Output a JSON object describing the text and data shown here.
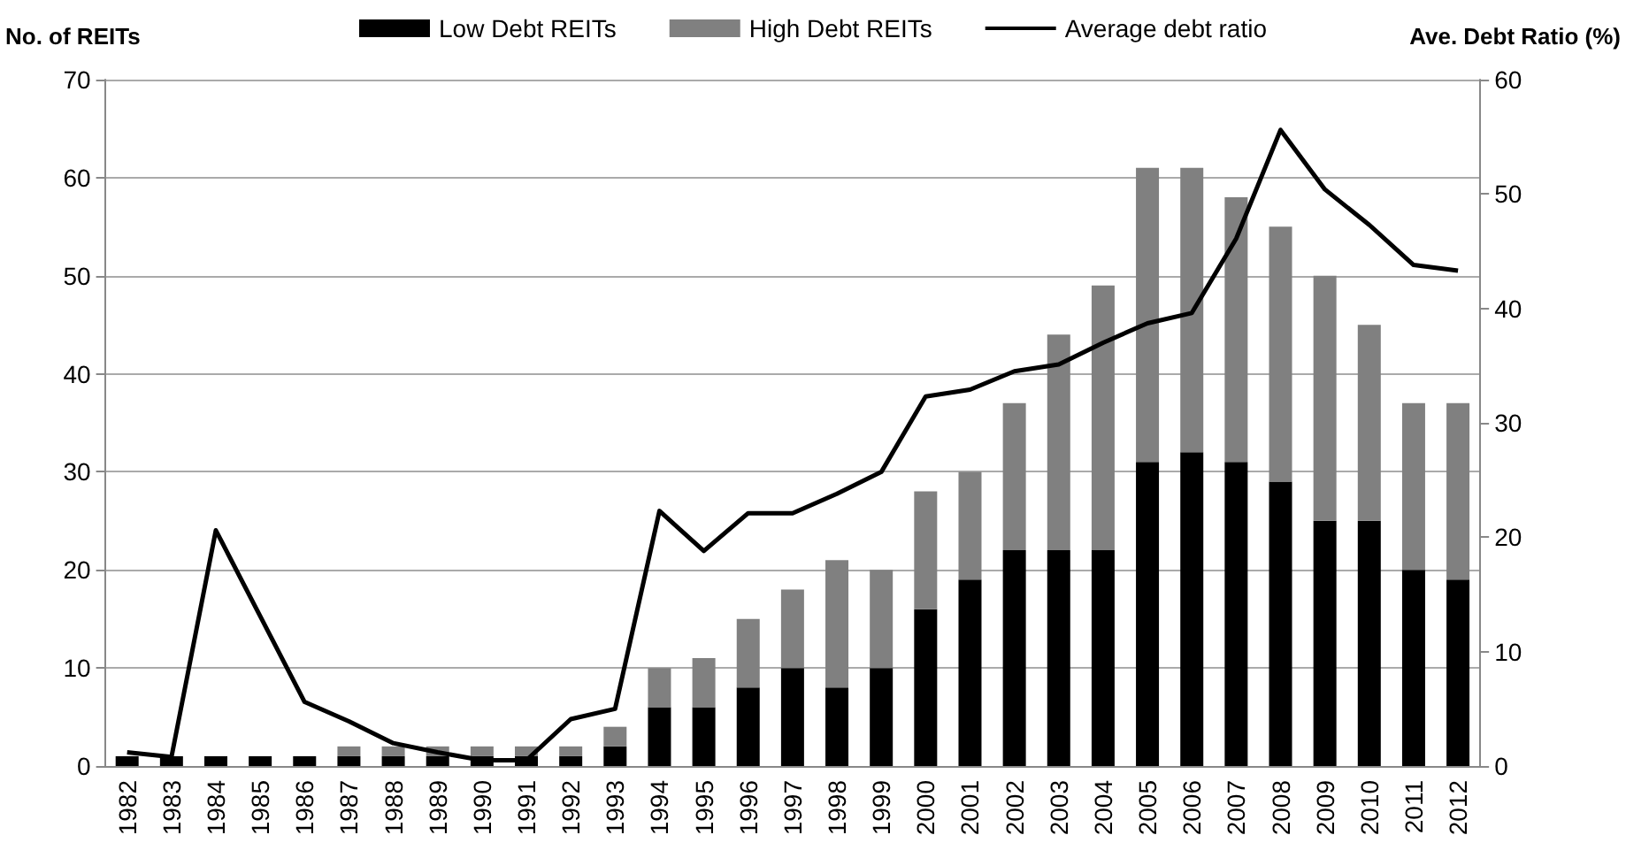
{
  "chart_data": {
    "type": "bar",
    "stacked": true,
    "ylabel": "No. of REITs",
    "y2label": "Ave. Debt Ratio (%)",
    "categories": [
      "1982",
      "1983",
      "1984",
      "1985",
      "1986",
      "1987",
      "1988",
      "1989",
      "1990",
      "1991",
      "1992",
      "1993",
      "1994",
      "1995",
      "1996",
      "1997",
      "1998",
      "1999",
      "2000",
      "2001",
      "2002",
      "2003",
      "2004",
      "2005",
      "2006",
      "2007",
      "2008",
      "2009",
      "2010",
      "2011",
      "2012"
    ],
    "series": [
      {
        "name": "Low Debt REITs",
        "color": "#000000",
        "values": [
          1,
          1,
          1,
          1,
          1,
          1,
          1,
          1,
          1,
          1,
          1,
          2,
          6,
          6,
          8,
          10,
          8,
          10,
          16,
          19,
          22,
          22,
          22,
          31,
          32,
          31,
          29,
          25,
          25,
          20,
          19
        ]
      },
      {
        "name": "High Debt REITs",
        "color": "#808080",
        "values": [
          0,
          0,
          0,
          0,
          0,
          1,
          1,
          1,
          1,
          1,
          1,
          2,
          4,
          5,
          7,
          8,
          13,
          10,
          12,
          11,
          15,
          22,
          27,
          30,
          29,
          27,
          26,
          25,
          20,
          17,
          18
        ]
      },
      {
        "name": "Average debt ratio",
        "type": "line",
        "axis": "y2",
        "color": "#000000",
        "values": [
          1.2,
          0.8,
          20.6,
          13.1,
          5.6,
          3.9,
          2.0,
          1.2,
          0.5,
          0.5,
          4.1,
          5.0,
          22.3,
          18.8,
          22.1,
          22.1,
          23.8,
          25.7,
          32.3,
          32.9,
          34.5,
          35.1,
          37.0,
          38.7,
          39.6,
          46.1,
          55.6,
          50.4,
          47.3,
          43.8,
          43.3
        ]
      }
    ],
    "ylim": [
      0,
      70
    ],
    "yticks": [
      0,
      10,
      20,
      30,
      40,
      50,
      60,
      70
    ],
    "y2lim": [
      0,
      60
    ],
    "y2ticks": [
      0,
      10,
      20,
      30,
      40,
      50,
      60
    ],
    "grid": "y",
    "legend": "top",
    "marker": "none",
    "line_style": "solid"
  }
}
